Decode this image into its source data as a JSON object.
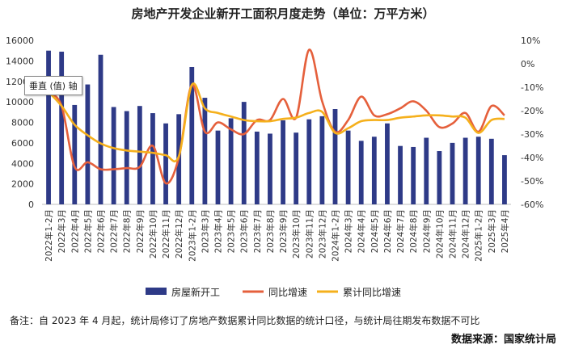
{
  "chart_data": {
    "type": "bar+line",
    "title": "房地产开发企业新开工面积月度走势（单位：万平方米）",
    "categories": [
      "2022年1-2月",
      "2022年3月",
      "2022年4月",
      "2022年5月",
      "2022年6月",
      "2022年7月",
      "2022年8月",
      "2022年9月",
      "2022年10月",
      "2022年11月",
      "2022年12月",
      "2023年1-2月",
      "2023年3月",
      "2023年4月",
      "2023年5月",
      "2023年6月",
      "2023年7月",
      "2023年8月",
      "2023年9月",
      "2023年10月",
      "2023年11月",
      "2023年12月",
      "2024年1-2月",
      "2024年3月",
      "2024年4月",
      "2024年5月",
      "2024年6月",
      "2024年7月",
      "2024年8月",
      "2024年9月",
      "2024年10月",
      "2024年11月",
      "2024年12月",
      "2025年1-2月",
      "2025年3月",
      "2025年4月"
    ],
    "left_axis": {
      "min": 0,
      "max": 16000,
      "ticks": [
        "0",
        "2000",
        "4000",
        "6000",
        "8000",
        "10000",
        "12000",
        "14000",
        "16000"
      ]
    },
    "right_axis": {
      "min": -60,
      "max": 10,
      "ticks": [
        "10%",
        "0%",
        "-10%",
        "-20%",
        "-30%",
        "-40%",
        "-50%",
        "-60%"
      ]
    },
    "tooltip": "垂直 (值) 轴",
    "series": [
      {
        "name": "房屋新开工",
        "type": "bar",
        "axis": "left",
        "color": "#2e3a87",
        "values": [
          15000,
          14900,
          9700,
          11700,
          14600,
          9500,
          9100,
          9600,
          8900,
          7900,
          8800,
          13400,
          10400,
          7200,
          8400,
          10000,
          7100,
          6900,
          8200,
          7000,
          8300,
          8600,
          9300,
          7200,
          6200,
          6600,
          7900,
          5700,
          5600,
          6500,
          5200,
          6000,
          6500,
          6600,
          6400,
          4800
        ]
      },
      {
        "name": "同比增速",
        "type": "line",
        "axis": "right",
        "color": "#e5603c",
        "values": [
          -12,
          -18,
          -44,
          -42,
          -45,
          -45,
          -44.5,
          -44,
          -35,
          -51,
          -40,
          -9,
          -29,
          -25,
          -28,
          -30,
          -24,
          -24,
          -15,
          -23,
          6,
          -16,
          -29,
          -24,
          -14,
          -22,
          -21.5,
          -19,
          -16,
          -20,
          -27,
          -25.5,
          -21,
          -29,
          -18,
          -22
        ]
      },
      {
        "name": "累计同比增速",
        "type": "line",
        "axis": "right",
        "color": "#f5b01c",
        "values": [
          -12,
          -18,
          -26,
          -30.5,
          -34,
          -36,
          -37,
          -37.5,
          -38,
          -39,
          -39.5,
          -9,
          -19,
          -21,
          -22.5,
          -24,
          -24.5,
          -24.5,
          -23.5,
          -23,
          -21,
          -20.5,
          -29.5,
          -27.5,
          -24.5,
          -24,
          -24,
          -23,
          -22.5,
          -22,
          -22,
          -22.5,
          -23,
          -29.5,
          -24,
          -23.5
        ]
      }
    ]
  },
  "note": "备注：自 2023 年 4 月起，统计局修订了房地产数据累计同比数据的统计口径，与统计局往期发布数据不可比",
  "source": "数据来源：国家统计局"
}
